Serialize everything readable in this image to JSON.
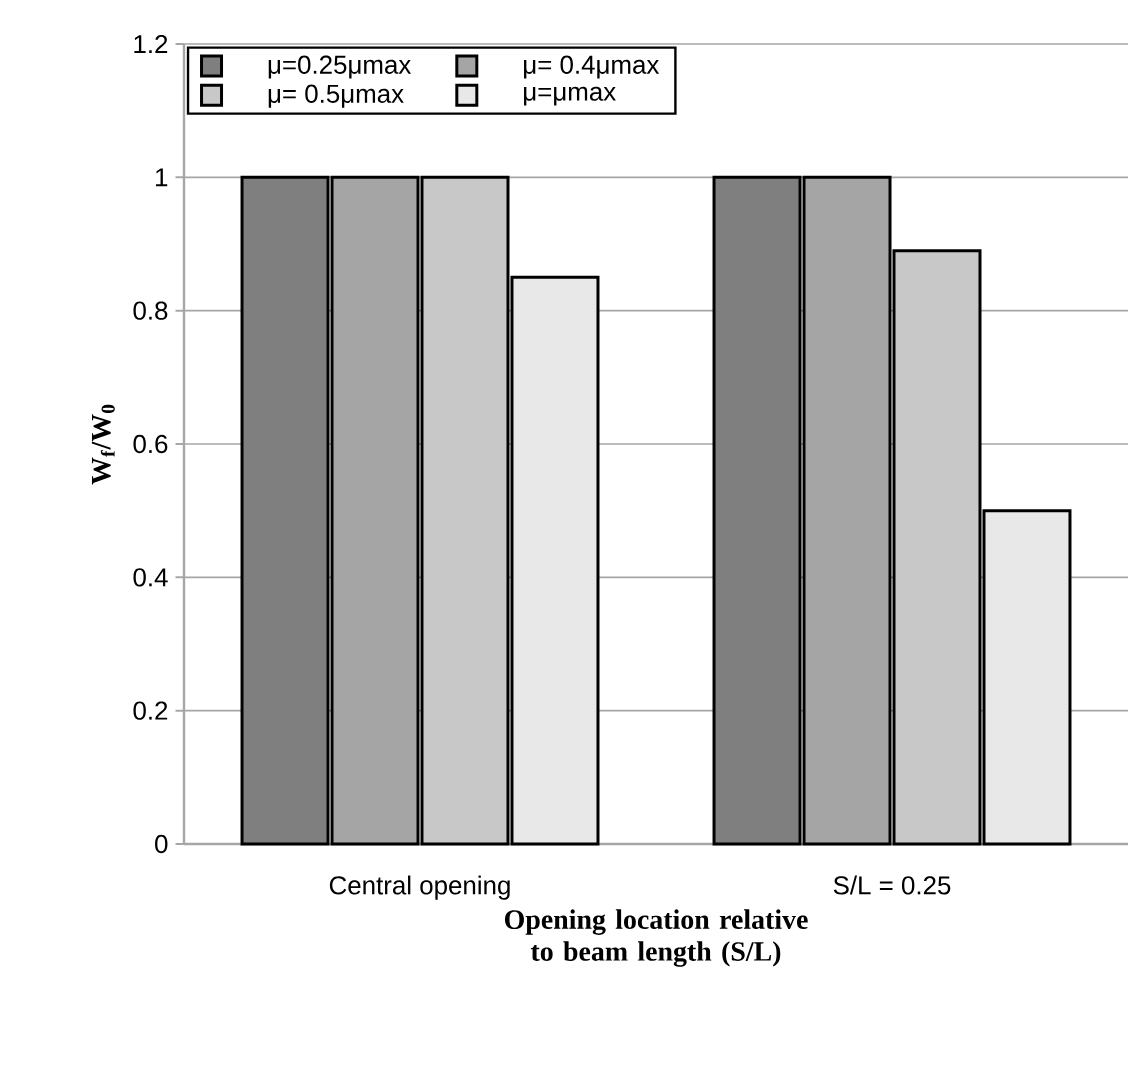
{
  "chart_data": {
    "type": "bar",
    "xlabel": "Opening location relative to beam length (S/L)",
    "ylabel": "W$_{f}$/W$_{0}$",
    "categories": [
      "Central opening",
      "S/L = 0.25"
    ],
    "series": [
      {
        "name": "μ=0.25μmax",
        "color": "#7f7f7f",
        "values": [
          1,
          1
        ]
      },
      {
        "name": "μ= 0.4μmax",
        "color": "#a5a5a5",
        "values": [
          1,
          1
        ]
      },
      {
        "name": "μ= 0.5μmax",
        "color": "#c8c8c8",
        "values": [
          1,
          0.89
        ]
      },
      {
        "name": "μ=μmax",
        "color": "#e8e8e8",
        "values": [
          0.85,
          0.5
        ]
      }
    ],
    "ylim": [
      0,
      1.2
    ],
    "yticks": [
      0,
      0.2,
      0.4,
      0.6,
      0.8,
      1,
      1.2
    ],
    "grid": "y",
    "legend": "top left"
  }
}
